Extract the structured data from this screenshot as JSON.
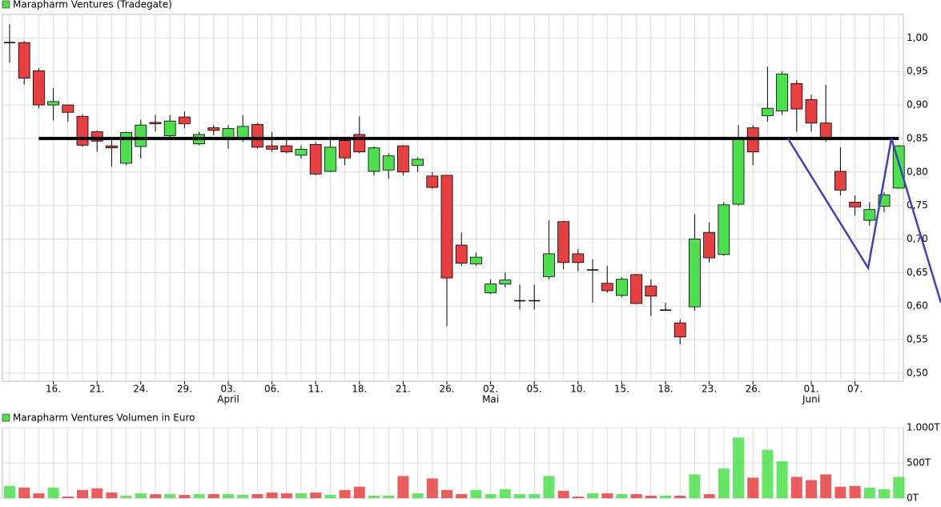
{
  "chart_data": [
    {
      "type": "candlestick",
      "title": "Marapharm Ventures (Tradegate)",
      "categories": [
        null,
        null,
        null,
        "16.",
        null,
        null,
        "21.",
        null,
        null,
        "24.",
        null,
        null,
        "29.",
        null,
        null,
        "03.",
        null,
        null,
        "06.",
        null,
        null,
        "11.",
        null,
        null,
        "18.",
        null,
        null,
        "21.",
        null,
        null,
        "26.",
        null,
        null,
        "02.",
        null,
        null,
        "05.",
        null,
        null,
        "10.",
        null,
        null,
        "15.",
        null,
        null,
        "18.",
        null,
        null,
        "23.",
        null,
        null,
        "26.",
        null,
        null,
        null,
        "01.",
        null,
        null,
        "07.",
        null,
        null,
        null
      ],
      "months": [
        {
          "label": "April",
          "at": 15
        },
        {
          "label": "Mai",
          "at": 33
        },
        {
          "label": "Juni",
          "at": 55
        }
      ],
      "open": [
        0.993,
        0.993,
        0.951,
        0.9,
        0.9,
        0.883,
        0.86,
        0.839,
        0.813,
        0.838,
        0.874,
        0.854,
        0.882,
        0.842,
        0.866,
        0.849,
        0.849,
        0.871,
        0.839,
        0.839,
        0.825,
        0.841,
        0.801,
        0.847,
        0.856,
        0.801,
        0.803,
        0.839,
        0.81,
        0.794,
        0.795,
        0.691,
        0.663,
        0.62,
        0.633,
        0.608,
        0.608,
        0.644,
        0.726,
        0.678,
        0.654,
        0.634,
        0.616,
        0.647,
        0.63,
        0.594,
        0.575,
        0.599,
        0.71,
        0.677,
        0.752,
        0.866,
        0.884,
        0.891,
        0.932,
        0.908,
        0.873,
        0.801,
        0.755,
        0.728,
        0.749,
        0.776
      ],
      "high": [
        1.02,
        0.995,
        0.955,
        0.925,
        0.9,
        0.886,
        0.862,
        0.85,
        0.86,
        0.878,
        0.885,
        0.885,
        0.89,
        0.86,
        0.87,
        0.87,
        0.885,
        0.873,
        0.86,
        0.85,
        0.84,
        0.845,
        0.85,
        0.85,
        0.883,
        0.838,
        0.828,
        0.84,
        0.822,
        0.8,
        0.795,
        0.71,
        0.68,
        0.64,
        0.65,
        0.632,
        0.632,
        0.728,
        0.727,
        0.685,
        0.67,
        0.66,
        0.643,
        0.648,
        0.64,
        0.605,
        0.58,
        0.737,
        0.725,
        0.755,
        0.87,
        0.87,
        0.957,
        0.95,
        0.937,
        0.915,
        0.93,
        0.837,
        0.765,
        0.755,
        0.77,
        0.84
      ],
      "low": [
        0.963,
        0.93,
        0.895,
        0.877,
        0.875,
        0.838,
        0.83,
        0.808,
        0.81,
        0.82,
        0.86,
        0.85,
        0.865,
        0.84,
        0.855,
        0.835,
        0.845,
        0.835,
        0.83,
        0.828,
        0.82,
        0.795,
        0.8,
        0.81,
        0.828,
        0.795,
        0.79,
        0.795,
        0.8,
        0.775,
        0.57,
        0.66,
        0.66,
        0.618,
        0.628,
        0.595,
        0.595,
        0.64,
        0.655,
        0.652,
        0.605,
        0.62,
        0.613,
        0.603,
        0.585,
        0.593,
        0.543,
        0.593,
        0.665,
        0.675,
        0.75,
        0.81,
        0.875,
        0.885,
        0.86,
        0.86,
        0.845,
        0.765,
        0.735,
        0.72,
        0.74,
        0.775
      ],
      "close": [
        0.993,
        0.94,
        0.9,
        0.905,
        0.889,
        0.84,
        0.846,
        0.836,
        0.859,
        0.87,
        0.872,
        0.876,
        0.872,
        0.856,
        0.862,
        0.865,
        0.868,
        0.837,
        0.834,
        0.83,
        0.834,
        0.797,
        0.837,
        0.821,
        0.83,
        0.836,
        0.824,
        0.8,
        0.819,
        0.777,
        0.642,
        0.664,
        0.673,
        0.633,
        0.639,
        0.608,
        0.608,
        0.678,
        0.665,
        0.665,
        0.654,
        0.623,
        0.64,
        0.604,
        0.615,
        0.594,
        0.554,
        0.7,
        0.672,
        0.751,
        0.849,
        0.83,
        0.895,
        0.946,
        0.894,
        0.873,
        0.848,
        0.773,
        0.748,
        0.744,
        0.766,
        0.839
      ],
      "up_color": "#4ce04c",
      "down_color": "#e84040",
      "ylim": [
        0.488,
        1.035
      ],
      "yticks": [
        {
          "value": 0.5,
          "label": "0,50"
        },
        {
          "value": 0.55,
          "label": "0,55"
        },
        {
          "value": 0.6,
          "label": "0,60"
        },
        {
          "value": 0.65,
          "label": "0,65"
        },
        {
          "value": 0.7,
          "label": "0,70"
        },
        {
          "value": 0.75,
          "label": "0,75"
        },
        {
          "value": 0.8,
          "label": "0,80"
        },
        {
          "value": 0.85,
          "label": "0,85"
        },
        {
          "value": 0.9,
          "label": "0,90"
        },
        {
          "value": 0.95,
          "label": "0,95"
        },
        {
          "value": 1.0,
          "label": "1,00"
        }
      ],
      "grid": true,
      "level_line": {
        "value": 0.85,
        "from": 2,
        "to": 61,
        "color": "#000000"
      },
      "trend_line": {
        "color": "#4040c0",
        "x": [
          53.4,
          58.9,
          60.5,
          63.9
        ],
        "y": [
          0.85,
          0.657,
          0.85,
          0.605
        ]
      }
    },
    {
      "type": "bar",
      "title": "Marapharm Ventures Volumen in Euro",
      "values": [
        174,
        151,
        70,
        151,
        23,
        116,
        140,
        81,
        35,
        70,
        58,
        58,
        47,
        58,
        58,
        58,
        47,
        58,
        81,
        70,
        70,
        81,
        47,
        116,
        163,
        35,
        35,
        314,
        70,
        279,
        116,
        58,
        116,
        58,
        128,
        58,
        58,
        314,
        105,
        23,
        70,
        70,
        58,
        58,
        35,
        35,
        35,
        337,
        58,
        419,
        860,
        291,
        686,
        523,
        302,
        256,
        337,
        163,
        174,
        151,
        128,
        302
      ],
      "ylim": [
        0,
        1000
      ],
      "yticks": [
        {
          "value": 1000,
          "label": "1.000T"
        },
        {
          "value": 500,
          "label": "500T"
        },
        {
          "value": 0,
          "label": "0T"
        }
      ],
      "grid": true
    }
  ]
}
